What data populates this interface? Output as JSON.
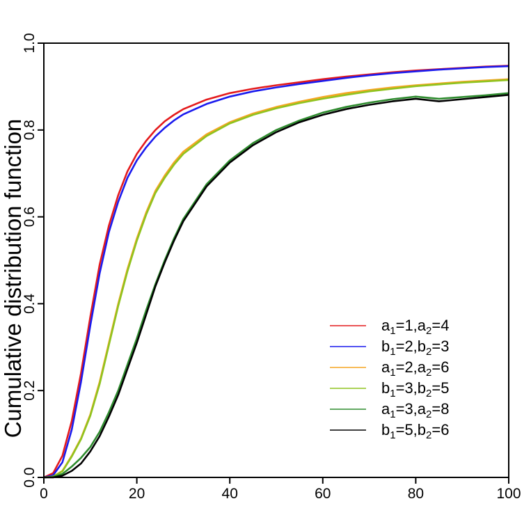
{
  "chart_data": {
    "type": "line",
    "title": "",
    "xlabel": "",
    "ylabel": "Cumulative distribution function",
    "xlim": [
      0,
      100
    ],
    "ylim": [
      0,
      1
    ],
    "x_ticks": [
      0,
      20,
      40,
      60,
      80,
      100
    ],
    "y_ticks": [
      0.0,
      0.2,
      0.4,
      0.6,
      0.8,
      1.0
    ],
    "x_tick_labels": [
      "0",
      "20",
      "40",
      "60",
      "80",
      "100"
    ],
    "y_tick_labels": [
      "0.0",
      "0.2",
      "0.4",
      "0.6",
      "0.8",
      "1.0"
    ],
    "grid": false,
    "legend_position": "bottom-right",
    "x": [
      0,
      2,
      4,
      6,
      8,
      10,
      12,
      14,
      16,
      18,
      20,
      22,
      24,
      26,
      28,
      30,
      35,
      40,
      45,
      50,
      55,
      60,
      65,
      70,
      75,
      80,
      85,
      90,
      95,
      100
    ],
    "series": [
      {
        "name": "a1=1,a2=4",
        "label": {
          "p1": "a",
          "s1": "1",
          "v1": "=1,",
          "p2": "a",
          "s2": "2",
          "v2": "=4"
        },
        "color": "#e41a1c",
        "values": [
          0,
          0.01,
          0.05,
          0.13,
          0.24,
          0.37,
          0.49,
          0.58,
          0.65,
          0.705,
          0.745,
          0.775,
          0.8,
          0.82,
          0.835,
          0.848,
          0.87,
          0.885,
          0.895,
          0.903,
          0.91,
          0.917,
          0.923,
          0.928,
          0.933,
          0.937,
          0.94,
          0.943,
          0.946,
          0.948
        ]
      },
      {
        "name": "b1=2,b2=3",
        "label": {
          "p1": "b",
          "s1": "1",
          "v1": "=2,",
          "p2": "b",
          "s2": "2",
          "v2": "=3"
        },
        "color": "#1a1aee",
        "values": [
          0,
          0.005,
          0.035,
          0.11,
          0.22,
          0.35,
          0.47,
          0.565,
          0.635,
          0.69,
          0.73,
          0.76,
          0.785,
          0.805,
          0.822,
          0.836,
          0.86,
          0.877,
          0.889,
          0.898,
          0.906,
          0.913,
          0.92,
          0.926,
          0.931,
          0.935,
          0.939,
          0.942,
          0.945,
          0.947
        ]
      },
      {
        "name": "a1=2,a2=6",
        "label": {
          "p1": "a",
          "s1": "1",
          "v1": "=2,",
          "p2": "a",
          "s2": "2",
          "v2": "=6"
        },
        "color": "#f5a623",
        "values": [
          0,
          0.002,
          0.015,
          0.05,
          0.09,
          0.145,
          0.22,
          0.31,
          0.4,
          0.48,
          0.55,
          0.61,
          0.66,
          0.695,
          0.725,
          0.75,
          0.79,
          0.818,
          0.838,
          0.853,
          0.865,
          0.876,
          0.885,
          0.892,
          0.898,
          0.903,
          0.907,
          0.911,
          0.914,
          0.917
        ]
      },
      {
        "name": "b1=3,b2=5",
        "label": {
          "p1": "b",
          "s1": "1",
          "v1": "=3,",
          "p2": "b",
          "s2": "2",
          "v2": "=5"
        },
        "color": "#8fc31f",
        "values": [
          0,
          0.002,
          0.014,
          0.048,
          0.088,
          0.142,
          0.215,
          0.305,
          0.395,
          0.475,
          0.545,
          0.605,
          0.655,
          0.69,
          0.72,
          0.745,
          0.786,
          0.815,
          0.835,
          0.85,
          0.862,
          0.872,
          0.881,
          0.889,
          0.895,
          0.901,
          0.905,
          0.909,
          0.912,
          0.915
        ]
      },
      {
        "name": "a1=3,a2=8",
        "label": {
          "p1": "a",
          "s1": "1",
          "v1": "=3,",
          "p2": "a",
          "s2": "2",
          "v2": "=8"
        },
        "color": "#2e8b2e",
        "values": [
          0,
          0.001,
          0.008,
          0.025,
          0.045,
          0.07,
          0.105,
          0.15,
          0.2,
          0.26,
          0.32,
          0.385,
          0.445,
          0.5,
          0.55,
          0.595,
          0.675,
          0.73,
          0.77,
          0.8,
          0.822,
          0.84,
          0.853,
          0.863,
          0.871,
          0.877,
          0.872,
          0.876,
          0.88,
          0.885
        ]
      },
      {
        "name": "b1=5,b2=6",
        "label": {
          "p1": "b",
          "s1": "1",
          "v1": "=5,",
          "p2": "b",
          "s2": "2",
          "v2": "=6"
        },
        "color": "#000000",
        "values": [
          0,
          0.0,
          0.004,
          0.015,
          0.032,
          0.06,
          0.095,
          0.14,
          0.19,
          0.25,
          0.31,
          0.375,
          0.44,
          0.495,
          0.545,
          0.59,
          0.67,
          0.725,
          0.765,
          0.795,
          0.818,
          0.835,
          0.848,
          0.858,
          0.866,
          0.872,
          0.866,
          0.871,
          0.876,
          0.881
        ]
      }
    ]
  }
}
